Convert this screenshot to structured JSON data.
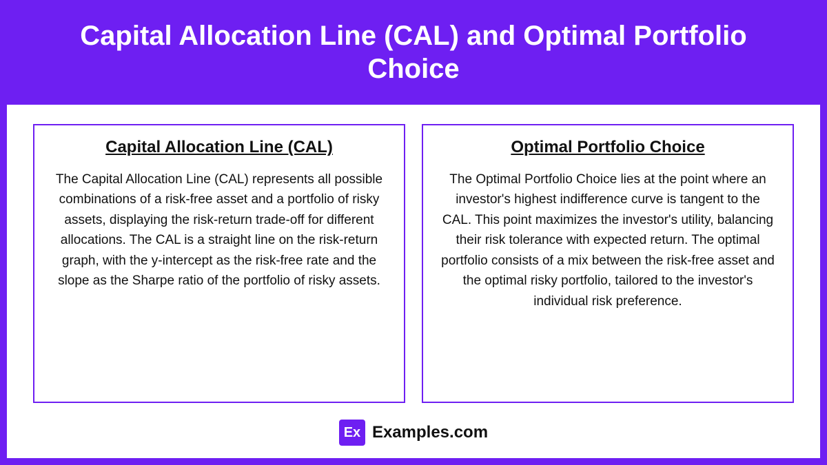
{
  "header": {
    "title": "Capital Allocation Line (CAL) and Optimal Portfolio Choice"
  },
  "cards": [
    {
      "title": "Capital Allocation Line (CAL)",
      "body": "The Capital Allocation Line (CAL) represents all possible combinations of a risk-free asset and a portfolio of risky assets, displaying the risk-return trade-off for different allocations. The CAL is a straight line on the risk-return graph, with the y-intercept as the risk-free rate and the slope as the Sharpe ratio of the portfolio of risky assets."
    },
    {
      "title": "Optimal Portfolio Choice",
      "body": "The Optimal Portfolio Choice lies at the point where an investor's highest indifference curve is tangent to the CAL. This point maximizes the investor's utility, balancing their risk tolerance with expected return. The optimal portfolio consists of a mix between the risk-free asset and the optimal risky portfolio, tailored to the investor's individual risk preference."
    }
  ],
  "footer": {
    "logo_abbrev": "Ex",
    "logo_text": "Examples.com"
  },
  "colors": {
    "accent": "#6e1ff2",
    "background": "#ffffff",
    "text": "#111111"
  }
}
